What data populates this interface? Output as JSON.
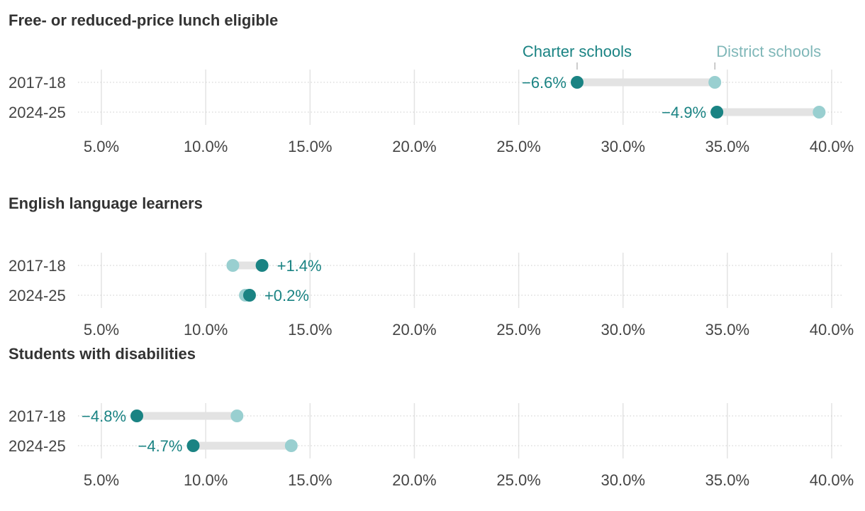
{
  "colors": {
    "charter": "#1a8383",
    "district": "#99cfd0",
    "district_label": "#7fb7b8",
    "connector": "#e3e3e3",
    "gridline": "#e3e3e3",
    "row_line": "#cccccc"
  },
  "legend": {
    "charter": "Charter schools",
    "district": "District schools"
  },
  "chart_data": [
    {
      "type": "dumbbell",
      "title": "Free- or reduced-price lunch eligible",
      "xlim": [
        4.0,
        40.5
      ],
      "ticks": [
        "5.0%",
        "10.0%",
        "15.0%",
        "20.0%",
        "25.0%",
        "30.0%",
        "35.0%",
        "40.0%"
      ],
      "tick_values": [
        5,
        10,
        15,
        20,
        25,
        30,
        35,
        40
      ],
      "rows": [
        {
          "label": "2017-18",
          "charter": 27.8,
          "district": 34.4,
          "diff_label": "−6.6%"
        },
        {
          "label": "2024-25",
          "charter": 34.5,
          "district": 39.4,
          "diff_label": "−4.9%"
        }
      ]
    },
    {
      "type": "dumbbell",
      "title": "English language learners",
      "xlim": [
        4.0,
        40.5
      ],
      "ticks": [
        "5.0%",
        "10.0%",
        "15.0%",
        "20.0%",
        "25.0%",
        "30.0%",
        "35.0%",
        "40.0%"
      ],
      "tick_values": [
        5,
        10,
        15,
        20,
        25,
        30,
        35,
        40
      ],
      "rows": [
        {
          "label": "2017-18",
          "charter": 12.7,
          "district": 11.3,
          "diff_label": "+1.4%"
        },
        {
          "label": "2024-25",
          "charter": 12.1,
          "district": 11.9,
          "diff_label": "+0.2%"
        }
      ]
    },
    {
      "type": "dumbbell",
      "title": "Students with disabilities",
      "xlim": [
        4.0,
        40.5
      ],
      "ticks": [
        "5.0%",
        "10.0%",
        "15.0%",
        "20.0%",
        "25.0%",
        "30.0%",
        "35.0%",
        "40.0%"
      ],
      "tick_values": [
        5,
        10,
        15,
        20,
        25,
        30,
        35,
        40
      ],
      "rows": [
        {
          "label": "2017-18",
          "charter": 6.7,
          "district": 11.5,
          "diff_label": "−4.8%"
        },
        {
          "label": "2024-25",
          "charter": 9.4,
          "district": 14.1,
          "diff_label": "−4.7%"
        }
      ]
    }
  ]
}
